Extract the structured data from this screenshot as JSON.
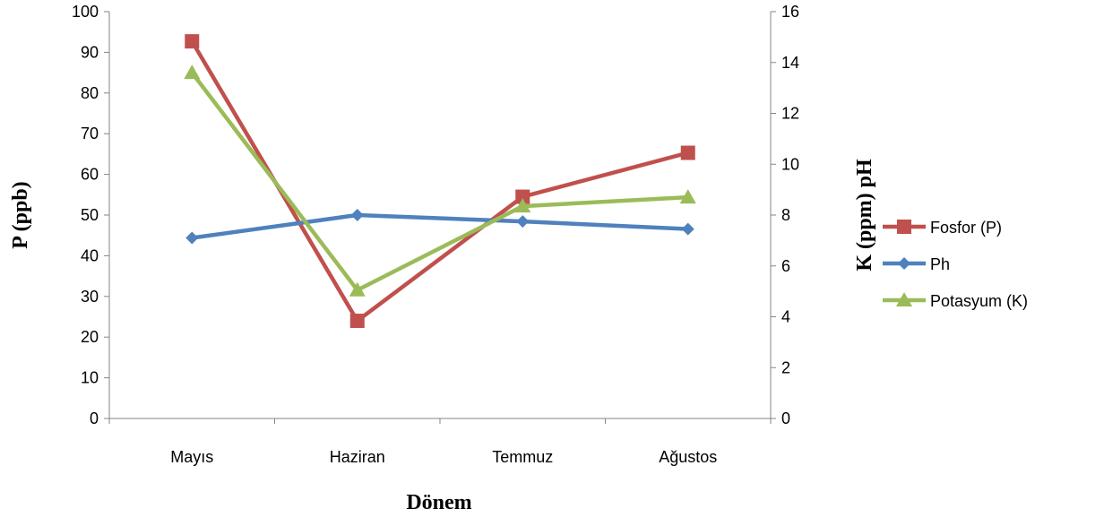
{
  "chart_data": {
    "type": "line",
    "categories": [
      "Mayıs",
      "Haziran",
      "Temmuz",
      "Ağustos"
    ],
    "xlabel": "Dönem",
    "ylabel_left": "P (ppb)",
    "ylabel_right": "K (ppm) pH",
    "ylim_left": [
      0,
      100
    ],
    "yticks_left": [
      0,
      10,
      20,
      30,
      40,
      50,
      60,
      70,
      80,
      90,
      100
    ],
    "ylim_right": [
      0,
      16
    ],
    "yticks_right": [
      0,
      2,
      4,
      6,
      8,
      10,
      12,
      14,
      16
    ],
    "grid": false,
    "legend_position": "right",
    "series": [
      {
        "name": "Fosfor (P)",
        "axis": "left",
        "color": "#c0504d",
        "marker": "square",
        "values": [
          92.7,
          24.0,
          54.5,
          65.3
        ]
      },
      {
        "name": "Ph",
        "axis": "right",
        "color": "#4f81bd",
        "marker": "diamond",
        "values": [
          7.1,
          8.0,
          7.75,
          7.45
        ]
      },
      {
        "name": "Potasyum (K)",
        "axis": "right",
        "color": "#9bbb59",
        "marker": "triangle",
        "values": [
          13.6,
          5.05,
          8.35,
          8.7
        ]
      }
    ]
  }
}
